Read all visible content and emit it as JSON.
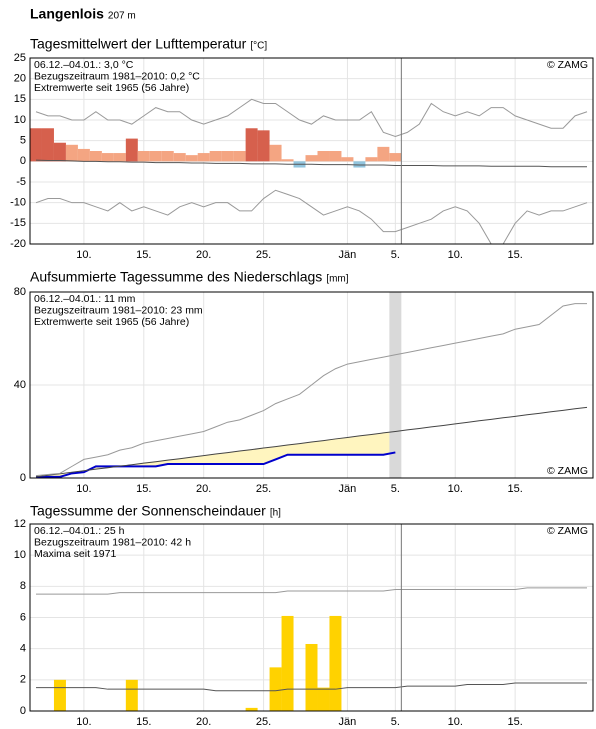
{
  "header": {
    "title": "Langenlois",
    "elevation": "207 m"
  },
  "chart_data": [
    {
      "type": "bar",
      "title": "Tagesmittelwert der Lufttemperatur",
      "unit": "[°C]",
      "notes": [
        "06.12.–04.01.: 3,0 °C",
        "Bezugszeitraum 1981–2010: 0,2 °C",
        "Extremwerte seit 1965 (56 Jahre)"
      ],
      "credit": "© ZAMG",
      "credit_position": "top-right",
      "grid": true,
      "ylim": [
        -20,
        25
      ],
      "yticks": [
        -20,
        -15,
        -10,
        -5,
        0,
        5,
        10,
        15,
        20,
        25
      ],
      "categories": [
        null,
        null,
        null,
        null,
        "10.",
        null,
        null,
        null,
        null,
        "15.",
        null,
        null,
        null,
        null,
        "20.",
        null,
        null,
        null,
        null,
        "25.",
        null,
        null,
        null,
        null,
        null,
        null,
        "Jän",
        null,
        null,
        null,
        "5.",
        null,
        null,
        null,
        null,
        "10.",
        null,
        null,
        null,
        null,
        "15.",
        null,
        null,
        null,
        null,
        null,
        null
      ],
      "series": [
        {
          "type": "bar",
          "values": [
            8,
            8,
            4.5,
            4,
            3,
            2.5,
            2,
            2,
            5.5,
            2.5,
            2.5,
            2.5,
            2,
            1.5,
            2,
            2.5,
            2.5,
            2.5,
            8,
            7.5,
            4,
            0.5,
            -1.5,
            1.5,
            2.5,
            2.5,
            1,
            -1.5,
            1,
            3.5,
            2,
            null,
            null,
            null,
            null,
            null,
            null,
            null,
            null,
            null,
            null,
            null,
            null,
            null,
            null,
            null,
            null
          ],
          "colors": [
            "#d6604d",
            "#d6604d",
            "#d6604d",
            "#f4a582",
            "#f4a582",
            "#f4a582",
            "#f4a582",
            "#f4a582",
            "#d6604d",
            "#f4a582",
            "#f4a582",
            "#f4a582",
            "#f4a582",
            "#f4a582",
            "#f4a582",
            "#f4a582",
            "#f4a582",
            "#f4a582",
            "#d6604d",
            "#d6604d",
            "#f4a582",
            "#f4a582",
            "#92c5de",
            "#f4a582",
            "#f4a582",
            "#f4a582",
            "#f4a582",
            "#92c5de",
            "#f4a582",
            "#f4a582",
            "#f4a582",
            null,
            null,
            null,
            null,
            null,
            null,
            null,
            null,
            null,
            null,
            null,
            null,
            null,
            null,
            null,
            null
          ]
        },
        {
          "type": "line",
          "color": "#555555",
          "values": [
            0.3,
            0.2,
            0.2,
            0.1,
            0,
            0,
            -0.1,
            -0.1,
            -0.2,
            -0.2,
            -0.3,
            -0.3,
            -0.3,
            -0.4,
            -0.4,
            -0.5,
            -0.5,
            -0.5,
            -0.6,
            -0.6,
            -0.6,
            -0.7,
            -0.7,
            -0.7,
            -0.8,
            -0.8,
            -0.8,
            -0.9,
            -0.9,
            -0.9,
            -1,
            -1,
            -1,
            -1,
            -1.1,
            -1.1,
            -1.1,
            -1.1,
            -1.2,
            -1.2,
            -1.2,
            -1.2,
            -1.2,
            -1.3,
            -1.3,
            -1.3,
            -1.3
          ]
        },
        {
          "type": "line",
          "color": "#999999",
          "values": [
            12,
            11,
            11,
            10,
            10,
            12,
            10,
            10,
            9,
            11,
            13,
            12,
            12,
            10,
            9,
            10,
            11,
            13,
            15,
            14,
            14,
            12,
            10,
            9,
            11,
            10,
            10,
            10,
            12,
            7,
            6,
            7,
            9,
            14,
            12,
            11,
            12,
            11,
            13,
            13,
            11,
            10,
            9,
            8,
            8,
            11,
            12
          ]
        },
        {
          "type": "line",
          "color": "#999999",
          "values": [
            -10,
            -9,
            -9,
            -10,
            -10,
            -11,
            -12,
            -10,
            -12,
            -11,
            -12,
            -13,
            -11,
            -10,
            -11,
            -10,
            -10,
            -12,
            -12,
            -9,
            -7,
            -8,
            -9,
            -11,
            -13,
            -12,
            -11,
            -12,
            -14,
            -17,
            -17,
            -16,
            -15,
            -14,
            -12,
            -11,
            -12,
            -15,
            -20,
            -20,
            -15,
            -12,
            -13,
            -12,
            -12,
            -11,
            -10
          ]
        }
      ]
    },
    {
      "type": "line",
      "title": "Aufsummierte Tagessumme des Niederschlags",
      "unit": "[mm]",
      "notes": [
        "06.12.–04.01.: 11 mm",
        "Bezugszeitraum 1981–2010: 23 mm",
        "Extremwerte seit 1965 (56 Jahre)"
      ],
      "credit": "© ZAMG",
      "credit_position": "bottom-right",
      "grid": true,
      "ylim": [
        0,
        80
      ],
      "yticks": [
        0,
        40,
        80
      ],
      "categories": [
        null,
        null,
        null,
        null,
        "10.",
        null,
        null,
        null,
        null,
        "15.",
        null,
        null,
        null,
        null,
        "20.",
        null,
        null,
        null,
        null,
        "25.",
        null,
        null,
        null,
        null,
        null,
        null,
        "Jän",
        null,
        null,
        null,
        "5.",
        null,
        null,
        null,
        null,
        "10.",
        null,
        null,
        null,
        null,
        "15.",
        null,
        null,
        null,
        null,
        null,
        null
      ],
      "series": [
        {
          "type": "line",
          "color": "#0000cc",
          "values": [
            0.5,
            0.5,
            0.5,
            2,
            2.5,
            5,
            5,
            5,
            5,
            5,
            5,
            6,
            6,
            6,
            6,
            6,
            6,
            6,
            6,
            6,
            8,
            10,
            10,
            10,
            10,
            10,
            10,
            10,
            10,
            10,
            11,
            null,
            null,
            null,
            null,
            null,
            null,
            null,
            null,
            null,
            null,
            null,
            null,
            null,
            null,
            null,
            null
          ]
        },
        {
          "type": "line",
          "color": "#444444",
          "fill": "#fff5bf",
          "values": [
            0.5,
            1.2,
            1.8,
            2.5,
            3.1,
            3.8,
            4.4,
            5.1,
            5.7,
            6.4,
            7,
            7.7,
            8.3,
            9,
            9.6,
            10.3,
            10.9,
            11.6,
            12.2,
            12.9,
            13.5,
            14.2,
            14.8,
            15.5,
            16.1,
            16.8,
            17.4,
            18.1,
            18.7,
            19.4,
            20,
            20.7,
            21.3,
            22,
            22.6,
            23.3,
            23.9,
            24.6,
            25.2,
            25.9,
            26.5,
            27.2,
            27.8,
            28.5,
            29.1,
            29.8,
            30.4
          ]
        },
        {
          "type": "line",
          "color": "#999999",
          "values": [
            1,
            1.5,
            2,
            5,
            8,
            9,
            10,
            12,
            13,
            15,
            16,
            17,
            18,
            19,
            20,
            22,
            24,
            25,
            27,
            29,
            32,
            34,
            36,
            40,
            44,
            47,
            49,
            50,
            51,
            52,
            53,
            54,
            55,
            56,
            57,
            58,
            59,
            60,
            61,
            62,
            64,
            65,
            66,
            70,
            74,
            75,
            75
          ]
        }
      ]
    },
    {
      "type": "bar",
      "title": "Tagessumme der Sonnenscheindauer",
      "unit": "[h]",
      "notes": [
        "06.12.–04.01.: 25 h",
        "Bezugszeitraum 1981–2010: 42 h",
        "Maxima seit 1971"
      ],
      "credit": "© ZAMG",
      "credit_position": "top-right",
      "grid": true,
      "ylim": [
        0,
        12
      ],
      "yticks": [
        0,
        2,
        4,
        6,
        8,
        10,
        12
      ],
      "categories": [
        null,
        null,
        null,
        null,
        "10.",
        null,
        null,
        null,
        null,
        "15.",
        null,
        null,
        null,
        null,
        "20.",
        null,
        null,
        null,
        null,
        "25.",
        null,
        null,
        null,
        null,
        null,
        null,
        "Jän",
        null,
        null,
        null,
        "5.",
        null,
        null,
        null,
        null,
        "10.",
        null,
        null,
        null,
        null,
        "15.",
        null,
        null,
        null,
        null,
        null,
        null
      ],
      "series": [
        {
          "type": "bar",
          "color": "#ffd200",
          "values": [
            0,
            0,
            2,
            0,
            0,
            0,
            0,
            0,
            2,
            0,
            0,
            0,
            0,
            0,
            0,
            0,
            0,
            0,
            0.2,
            0,
            2.8,
            6.1,
            0,
            4.3,
            1.5,
            6.1,
            0,
            0,
            0,
            0,
            0,
            null,
            null,
            null,
            null,
            null,
            null,
            null,
            null,
            null,
            null,
            null,
            null,
            null,
            null,
            null,
            null
          ]
        },
        {
          "type": "line",
          "color": "#555555",
          "values": [
            1.5,
            1.5,
            1.5,
            1.5,
            1.5,
            1.5,
            1.4,
            1.4,
            1.4,
            1.4,
            1.4,
            1.4,
            1.4,
            1.4,
            1.4,
            1.3,
            1.3,
            1.3,
            1.3,
            1.3,
            1.3,
            1.4,
            1.4,
            1.4,
            1.4,
            1.4,
            1.5,
            1.5,
            1.5,
            1.5,
            1.5,
            1.6,
            1.6,
            1.6,
            1.6,
            1.6,
            1.7,
            1.7,
            1.7,
            1.7,
            1.8,
            1.8,
            1.8,
            1.8,
            1.8,
            1.8,
            1.8
          ]
        },
        {
          "type": "line",
          "color": "#999999",
          "values": [
            7.5,
            7.5,
            7.5,
            7.5,
            7.5,
            7.5,
            7.5,
            7.6,
            7.6,
            7.6,
            7.6,
            7.6,
            7.6,
            7.6,
            7.6,
            7.6,
            7.6,
            7.6,
            7.6,
            7.6,
            7.6,
            7.7,
            7.7,
            7.7,
            7.7,
            7.7,
            7.7,
            7.7,
            7.7,
            7.7,
            7.8,
            7.8,
            7.8,
            7.8,
            7.8,
            7.8,
            7.8,
            7.8,
            7.8,
            7.8,
            7.8,
            7.9,
            7.9,
            7.9,
            7.9,
            7.9,
            7.9
          ]
        }
      ]
    }
  ]
}
